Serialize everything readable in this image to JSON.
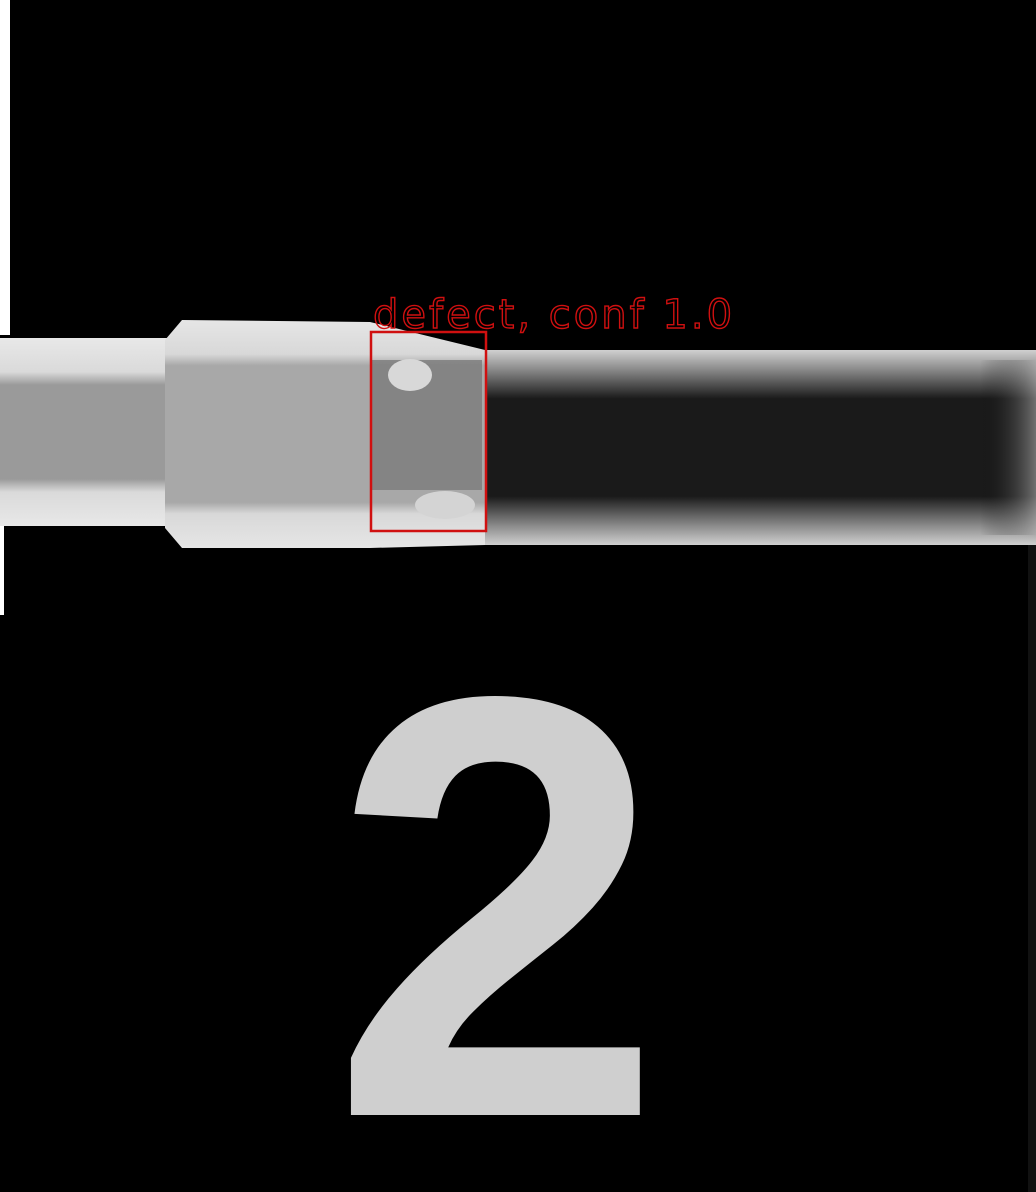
{
  "detections": [
    {
      "label": "defect, conf 1.0"
    }
  ],
  "marker": "2"
}
